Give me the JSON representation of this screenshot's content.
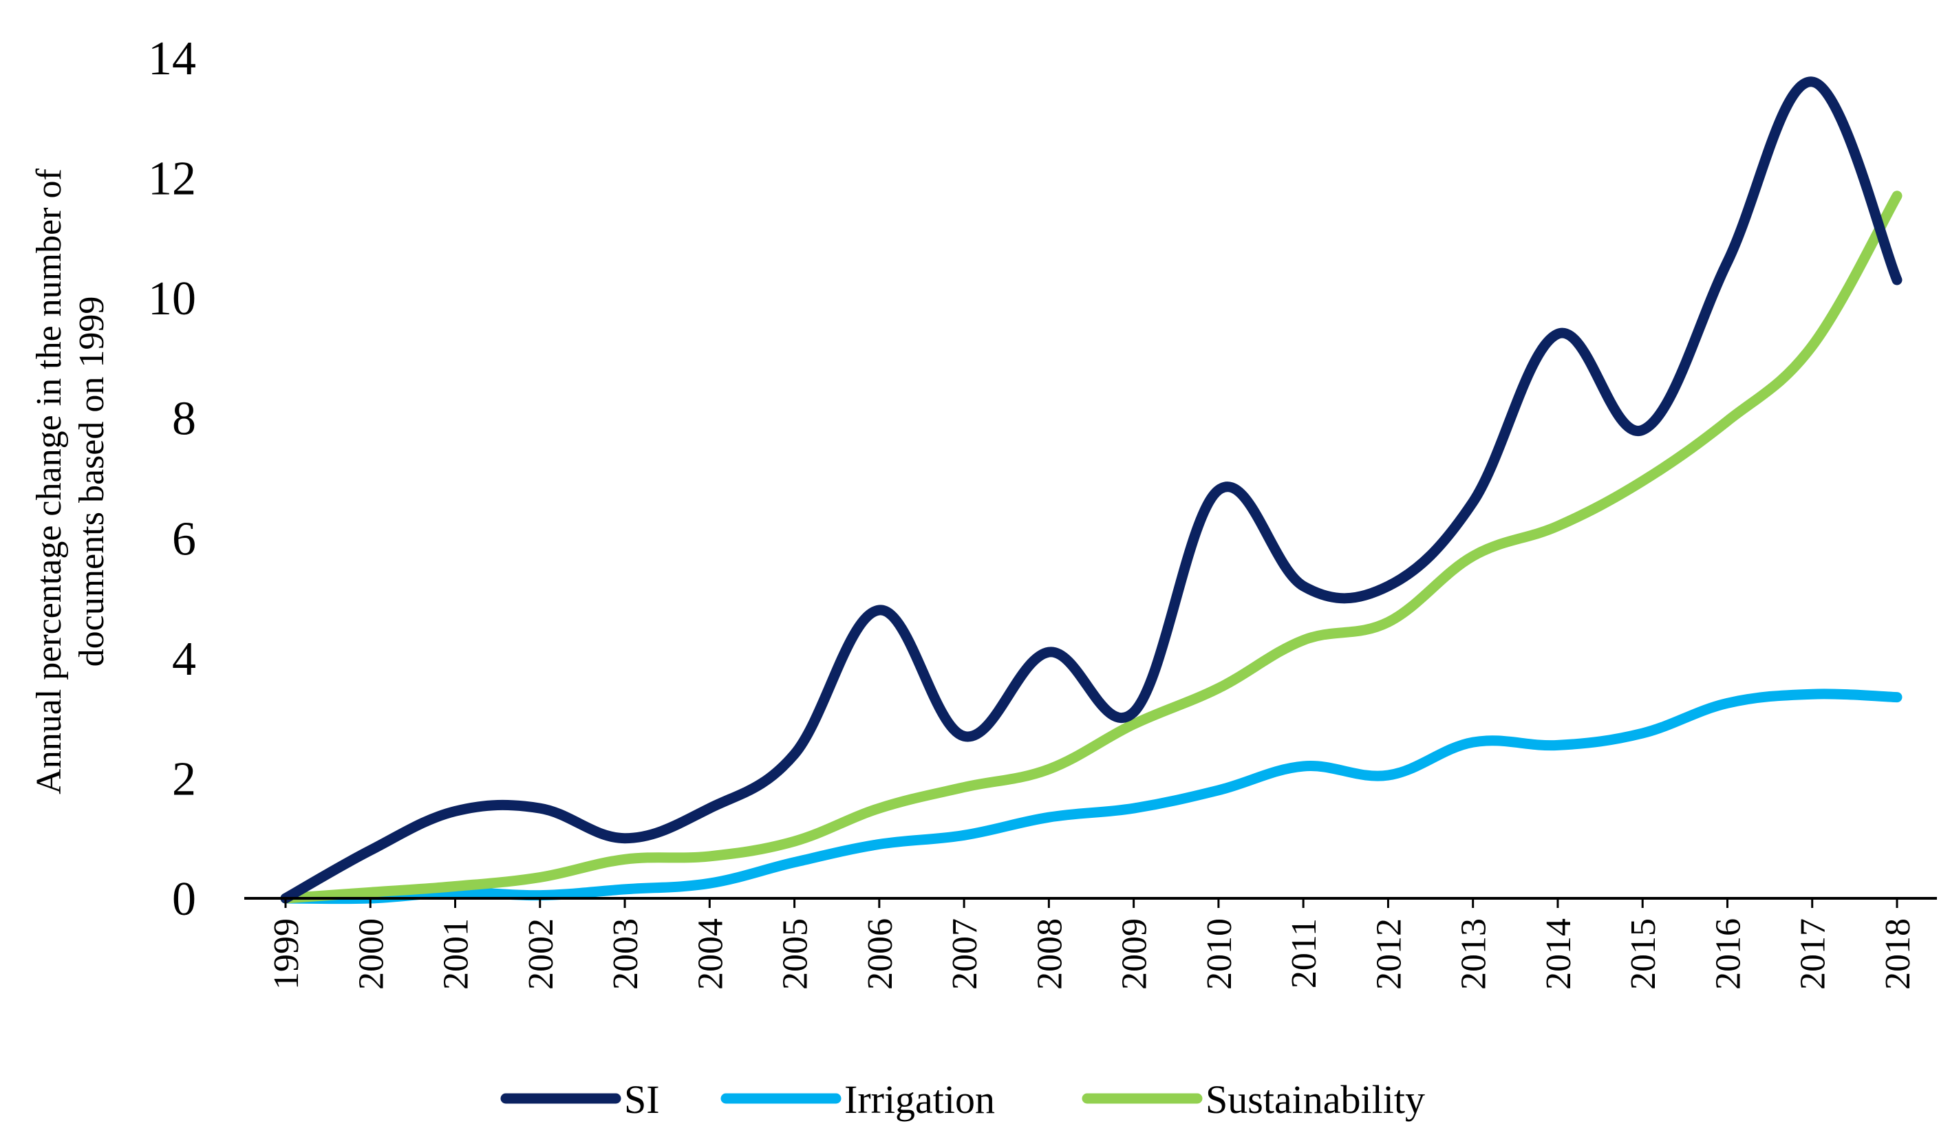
{
  "chart_data": {
    "type": "line",
    "title": "",
    "xlabel": "",
    "ylabel_lines": [
      "Annual percentage change in the number of",
      "documents based on 1999"
    ],
    "ylim": [
      0,
      14
    ],
    "yticks": [
      0,
      2,
      4,
      6,
      8,
      10,
      12,
      14
    ],
    "categories": [
      "1999",
      "2000",
      "2001",
      "2002",
      "2003",
      "2004",
      "2005",
      "2006",
      "2007",
      "2008",
      "2009",
      "2010",
      "2011",
      "2012",
      "2013",
      "2014",
      "2015",
      "2016",
      "2017",
      "2018"
    ],
    "series": [
      {
        "name": "SI",
        "color": "#0b2260",
        "values": [
          0,
          0.8,
          1.45,
          1.5,
          1.0,
          1.5,
          2.4,
          4.8,
          2.7,
          4.1,
          3.1,
          6.8,
          5.2,
          5.2,
          6.6,
          9.4,
          7.8,
          10.6,
          13.6,
          10.3
        ]
      },
      {
        "name": "Irrigation",
        "color": "#00b0f0",
        "values": [
          0,
          0.0,
          0.1,
          0.05,
          0.15,
          0.25,
          0.6,
          0.9,
          1.05,
          1.35,
          1.5,
          1.8,
          2.2,
          2.05,
          2.6,
          2.55,
          2.75,
          3.25,
          3.4,
          3.35
        ]
      },
      {
        "name": "Sustainability",
        "color": "#92d050",
        "values": [
          0,
          0.1,
          0.2,
          0.35,
          0.65,
          0.7,
          0.95,
          1.5,
          1.85,
          2.15,
          2.9,
          3.5,
          4.3,
          4.6,
          5.7,
          6.2,
          6.95,
          7.95,
          9.2,
          11.7
        ]
      }
    ],
    "legend_position": "bottom-center"
  }
}
